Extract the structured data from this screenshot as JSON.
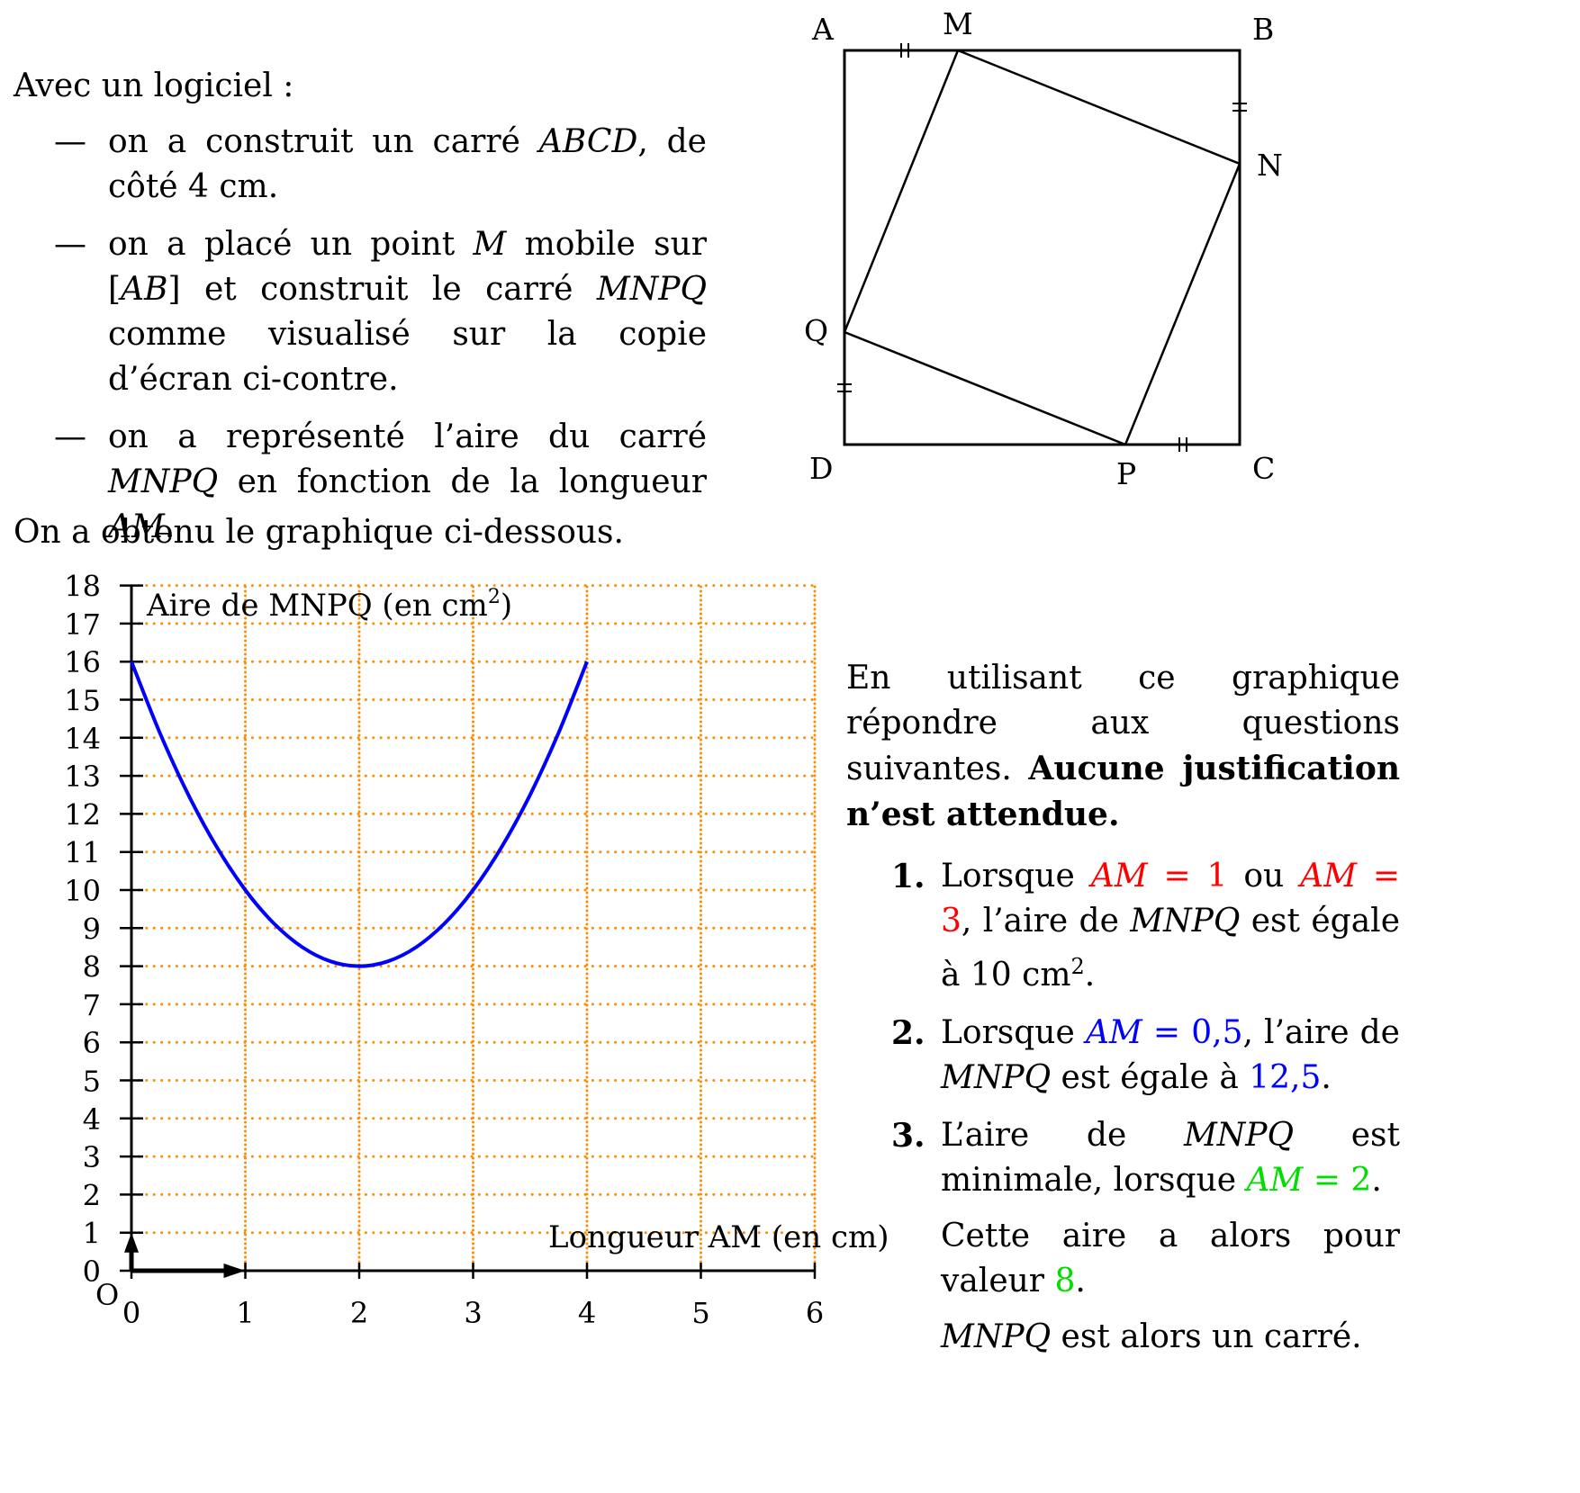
{
  "intro": {
    "heading": "Avec un logiciel :",
    "items": [
      [
        {
          "t": "on a construit un carré "
        },
        {
          "t": "ABCD",
          "i": true
        },
        {
          "t": ", de côté 4 cm."
        }
      ],
      [
        {
          "t": "on a placé un point "
        },
        {
          "t": "M",
          "i": true
        },
        {
          "t": " mobile sur ["
        },
        {
          "t": "AB",
          "i": true
        },
        {
          "t": "] et construit le carré "
        },
        {
          "t": "MNPQ",
          "i": true
        },
        {
          "t": " comme visualisé sur la copie d’écran ci-contre."
        }
      ],
      [
        {
          "t": "on a représenté l’aire du carré "
        },
        {
          "t": "MNPQ",
          "i": true
        },
        {
          "t": " en fonction de la longueur "
        },
        {
          "t": "AM",
          "i": true
        },
        {
          "t": "."
        }
      ]
    ]
  },
  "figure": {
    "labels": {
      "A": "A",
      "B": "B",
      "C": "C",
      "D": "D",
      "M": "M",
      "N": "N",
      "P": "P",
      "Q": "Q"
    }
  },
  "graph_intro": "On a obtenu le graphique ci-dessous.",
  "questions": {
    "intro_text": "En utilisant ce graphique répondre aux questions suivantes. ",
    "intro_bold": "Aucune justification n’est attendue.",
    "items": [
      {
        "num": "1.",
        "parts": [
          {
            "t": "Lorsque "
          },
          {
            "t": "AM",
            "i": true,
            "c": "red"
          },
          {
            "t": " = 1",
            "c": "red"
          },
          {
            "t": " ou "
          },
          {
            "t": "AM",
            "i": true,
            "c": "red"
          },
          {
            "t": " = 3",
            "c": "red"
          },
          {
            "t": ", l’aire de "
          },
          {
            "t": "MNPQ",
            "i": true
          },
          {
            "t": " est égale à 10 cm"
          },
          {
            "t": "2",
            "sup": true
          },
          {
            "t": "."
          }
        ]
      },
      {
        "num": "2.",
        "parts": [
          {
            "t": "Lorsque "
          },
          {
            "t": "AM",
            "i": true,
            "c": "blue"
          },
          {
            "t": " = 0,5",
            "c": "blue"
          },
          {
            "t": ", l’aire de "
          },
          {
            "t": "MNPQ",
            "i": true
          },
          {
            "t": " est égale à "
          },
          {
            "t": "12,5",
            "c": "blue"
          },
          {
            "t": "."
          }
        ]
      },
      {
        "num": "3.",
        "parts": [
          {
            "t": "L’aire de "
          },
          {
            "t": "MNPQ",
            "i": true
          },
          {
            "t": " est minimale, lorsque "
          },
          {
            "t": "AM",
            "i": true,
            "c": "green"
          },
          {
            "t": " = 2",
            "c": "green"
          },
          {
            "t": "."
          }
        ],
        "extra": [
          [
            {
              "t": "Cette aire a alors pour valeur "
            },
            {
              "t": "8",
              "c": "green"
            },
            {
              "t": "."
            }
          ],
          [
            {
              "t": "MNPQ",
              "i": true
            },
            {
              "t": " est alors un carré."
            }
          ]
        ]
      }
    ]
  },
  "chart_data": {
    "type": "line",
    "ylabel": "Aire de MNPQ (en cm²)",
    "xlabel": "Longueur AM (en cm)",
    "origin_label": "O",
    "xlim": [
      0,
      6
    ],
    "ylim": [
      0,
      18
    ],
    "x_ticks": [
      "0",
      "1",
      "2",
      "3",
      "4",
      "5",
      "6"
    ],
    "y_ticks": [
      "0",
      "1",
      "2",
      "3",
      "4",
      "5",
      "6",
      "7",
      "8",
      "9",
      "10",
      "11",
      "12",
      "13",
      "14",
      "15",
      "16",
      "17",
      "18"
    ],
    "grid": true,
    "curve_color": "#0000ff",
    "grid_color": "#ff8c00",
    "series": [
      {
        "x": [
          0,
          0.25,
          0.5,
          0.75,
          1,
          1.25,
          1.5,
          1.75,
          2,
          2.25,
          2.5,
          2.75,
          3,
          3.25,
          3.5,
          3.75,
          4
        ],
        "values": [
          16,
          14.125,
          12.5,
          11.125,
          10,
          9.125,
          8.5,
          8.125,
          8,
          8.125,
          8.5,
          9.125,
          10,
          11.125,
          12.5,
          14.125,
          16
        ]
      }
    ]
  }
}
